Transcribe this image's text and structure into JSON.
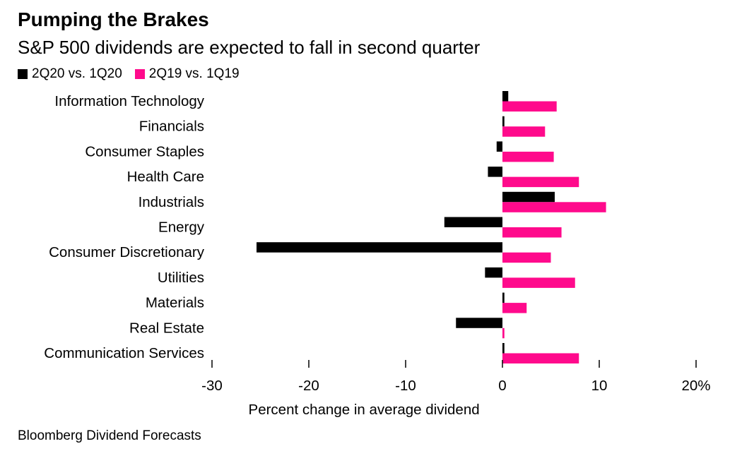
{
  "title": "Pumping the Brakes",
  "subtitle": "S&P 500 dividends are expected to fall in second quarter",
  "source": "Bloomberg Dividend Forecasts",
  "colors": {
    "series_2020": "#000000",
    "series_2019": "#ff0a8c"
  },
  "chart_data": {
    "type": "bar",
    "orientation": "horizontal",
    "categories": [
      "Information Technology",
      "Financials",
      "Consumer Staples",
      "Health Care",
      "Industrials",
      "Energy",
      "Consumer Discretionary",
      "Utilities",
      "Materials",
      "Real Estate",
      "Communication Services"
    ],
    "series": [
      {
        "name": "2Q20 vs. 1Q20",
        "color": "#000000",
        "values": [
          0.6,
          0.2,
          -0.6,
          -1.5,
          5.4,
          -6.0,
          -25.4,
          -1.8,
          0.2,
          -4.8,
          0.2
        ]
      },
      {
        "name": "2Q19 vs. 1Q19",
        "color": "#ff0a8c",
        "values": [
          5.6,
          4.4,
          5.3,
          7.9,
          10.7,
          6.1,
          5.0,
          7.5,
          2.5,
          0.2,
          7.9
        ]
      }
    ],
    "xlabel": "Percent change in average dividend",
    "xlim": [
      -30,
      20
    ],
    "xticks": [
      -30,
      -20,
      -10,
      0,
      10,
      20
    ],
    "xtick_labels": [
      "-30",
      "-20",
      "-10",
      "0",
      "10",
      "20%"
    ],
    "legend_position": "top-left",
    "grid": false
  }
}
